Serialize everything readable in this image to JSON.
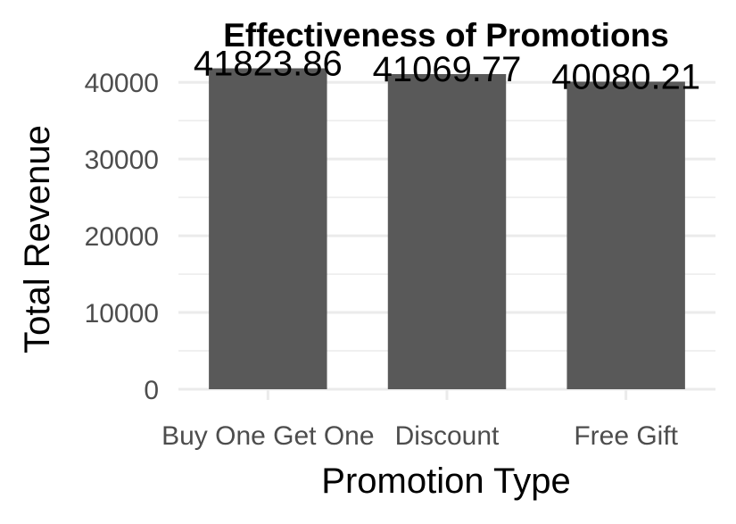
{
  "chart_data": {
    "type": "bar",
    "title": "Effectiveness of Promotions",
    "xlabel": "Promotion Type",
    "ylabel": "Total Revenue",
    "categories": [
      "Buy One Get One",
      "Discount",
      "Free Gift"
    ],
    "values": [
      41823.86,
      41069.77,
      40080.21
    ],
    "value_labels": [
      "41823.86",
      "41069.77",
      "40080.21"
    ],
    "ylim": [
      0,
      42000
    ],
    "yticks": [
      0,
      10000,
      20000,
      30000,
      40000
    ],
    "ytick_labels": [
      "0",
      "10000",
      "20000",
      "30000",
      "40000"
    ],
    "bar_color": "#595959",
    "grid": true,
    "legend": "none"
  }
}
